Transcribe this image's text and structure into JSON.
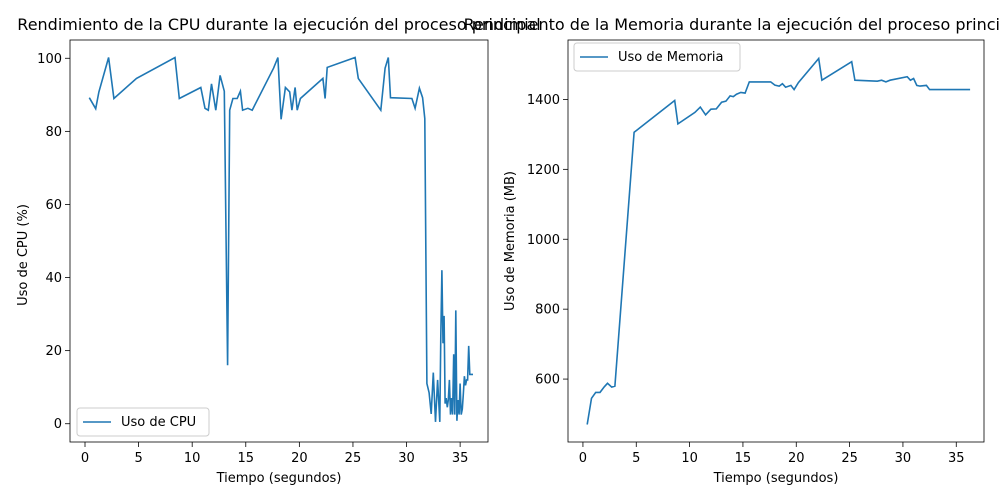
{
  "chart_data": [
    {
      "type": "line",
      "title": "Rendimiento de la CPU durante la ejecución del proceso principal",
      "xlabel": "Tiempo (segundos)",
      "ylabel": "Uso de CPU (%)",
      "xlim": [
        -1.4,
        37.6
      ],
      "ylim": [
        -5,
        105
      ],
      "xticks": [
        0,
        5,
        10,
        15,
        20,
        25,
        30,
        35
      ],
      "yticks": [
        0,
        20,
        40,
        60,
        80,
        100
      ],
      "legend_position": "lower-left",
      "grid": false,
      "color": "#1f77b4",
      "series": [
        {
          "name": "Uso de CPU",
          "x": [
            0.4,
            1.0,
            1.3,
            2.2,
            2.7,
            4.8,
            8.4,
            8.8,
            10.8,
            11.2,
            11.5,
            11.8,
            12.2,
            12.6,
            13.0,
            13.3,
            13.5,
            13.8,
            14.2,
            14.5,
            14.7,
            15.2,
            15.6,
            17.6,
            18.0,
            18.3,
            18.7,
            19.1,
            19.3,
            19.6,
            19.8,
            20.1,
            22.2,
            22.4,
            22.6,
            25.2,
            25.5,
            27.6,
            28.0,
            28.3,
            28.5,
            30.5,
            30.8,
            31.2,
            31.5,
            31.7,
            31.9,
            32.1,
            32.3,
            32.5,
            32.7,
            32.9,
            33.1,
            33.2,
            33.3,
            33.4,
            33.5,
            33.6,
            33.7,
            33.8,
            33.9,
            34.0,
            34.1,
            34.2,
            34.3,
            34.4,
            34.5,
            34.6,
            34.7,
            34.8,
            34.9,
            35.0,
            35.1,
            35.2,
            35.3,
            35.4,
            35.5,
            35.6,
            35.7,
            35.8,
            35.9,
            36.0,
            36.1,
            36.2
          ],
          "y": [
            89.2,
            86.2,
            90.8,
            100.2,
            89.0,
            94.5,
            100.2,
            89.0,
            92.0,
            86.3,
            85.8,
            93.0,
            85.8,
            95.3,
            91.0,
            16.0,
            85.8,
            89.0,
            89.0,
            91.0,
            85.8,
            86.3,
            85.8,
            97.3,
            100.2,
            83.3,
            92.0,
            90.8,
            85.8,
            92.0,
            85.8,
            89.0,
            94.5,
            89.0,
            97.5,
            100.2,
            94.5,
            85.8,
            97.3,
            100.2,
            89.2,
            89.0,
            86.3,
            91.8,
            89.2,
            83.5,
            11.0,
            8.5,
            2.7,
            14.0,
            0.5,
            12.0,
            0.5,
            24.0,
            42.0,
            22.0,
            29.5,
            5.5,
            7.0,
            4.5,
            6.5,
            12.0,
            2.5,
            7.0,
            2.5,
            19.0,
            2.5,
            31.0,
            0.8,
            6.5,
            2.5,
            11.0,
            2.5,
            4.0,
            8.0,
            13.0,
            10.5,
            12.0,
            12.0,
            21.3,
            13.5,
            13.5,
            13.5,
            13.5
          ]
        }
      ]
    },
    {
      "type": "line",
      "title": "Rendimiento de la Memoria durante la ejecución del proceso principal",
      "xlabel": "Tiempo (segundos)",
      "ylabel": "Uso de Memoria (MB)",
      "xlim": [
        -1.4,
        37.6
      ],
      "ylim": [
        420,
        1570
      ],
      "xticks": [
        0,
        5,
        10,
        15,
        20,
        25,
        30,
        35
      ],
      "yticks": [
        600,
        800,
        1000,
        1200,
        1400
      ],
      "legend_position": "upper-left",
      "grid": false,
      "color": "#1f77b4",
      "series": [
        {
          "name": "Uso de Memoria",
          "x": [
            0.4,
            0.8,
            1.2,
            1.6,
            2.0,
            2.3,
            2.7,
            3.0,
            4.8,
            8.6,
            8.9,
            10.5,
            11.0,
            11.5,
            12.0,
            12.5,
            13.0,
            13.4,
            13.8,
            14.1,
            14.4,
            14.8,
            15.2,
            15.6,
            17.6,
            18.0,
            18.4,
            18.7,
            19.0,
            19.5,
            19.8,
            20.2,
            22.1,
            22.4,
            25.2,
            25.5,
            27.6,
            28.0,
            28.4,
            28.8,
            30.4,
            30.7,
            31.0,
            31.3,
            31.6,
            32.2,
            32.5,
            36.3
          ],
          "y": [
            470,
            545,
            562,
            562,
            578,
            588,
            577,
            580,
            1306,
            1397,
            1330,
            1363,
            1378,
            1356,
            1372,
            1373,
            1392,
            1395,
            1410,
            1408,
            1415,
            1420,
            1418,
            1450,
            1450,
            1441,
            1438,
            1445,
            1435,
            1440,
            1428,
            1448,
            1517,
            1455,
            1508,
            1455,
            1452,
            1455,
            1450,
            1455,
            1465,
            1455,
            1460,
            1440,
            1438,
            1440,
            1428,
            1428
          ]
        }
      ]
    }
  ]
}
